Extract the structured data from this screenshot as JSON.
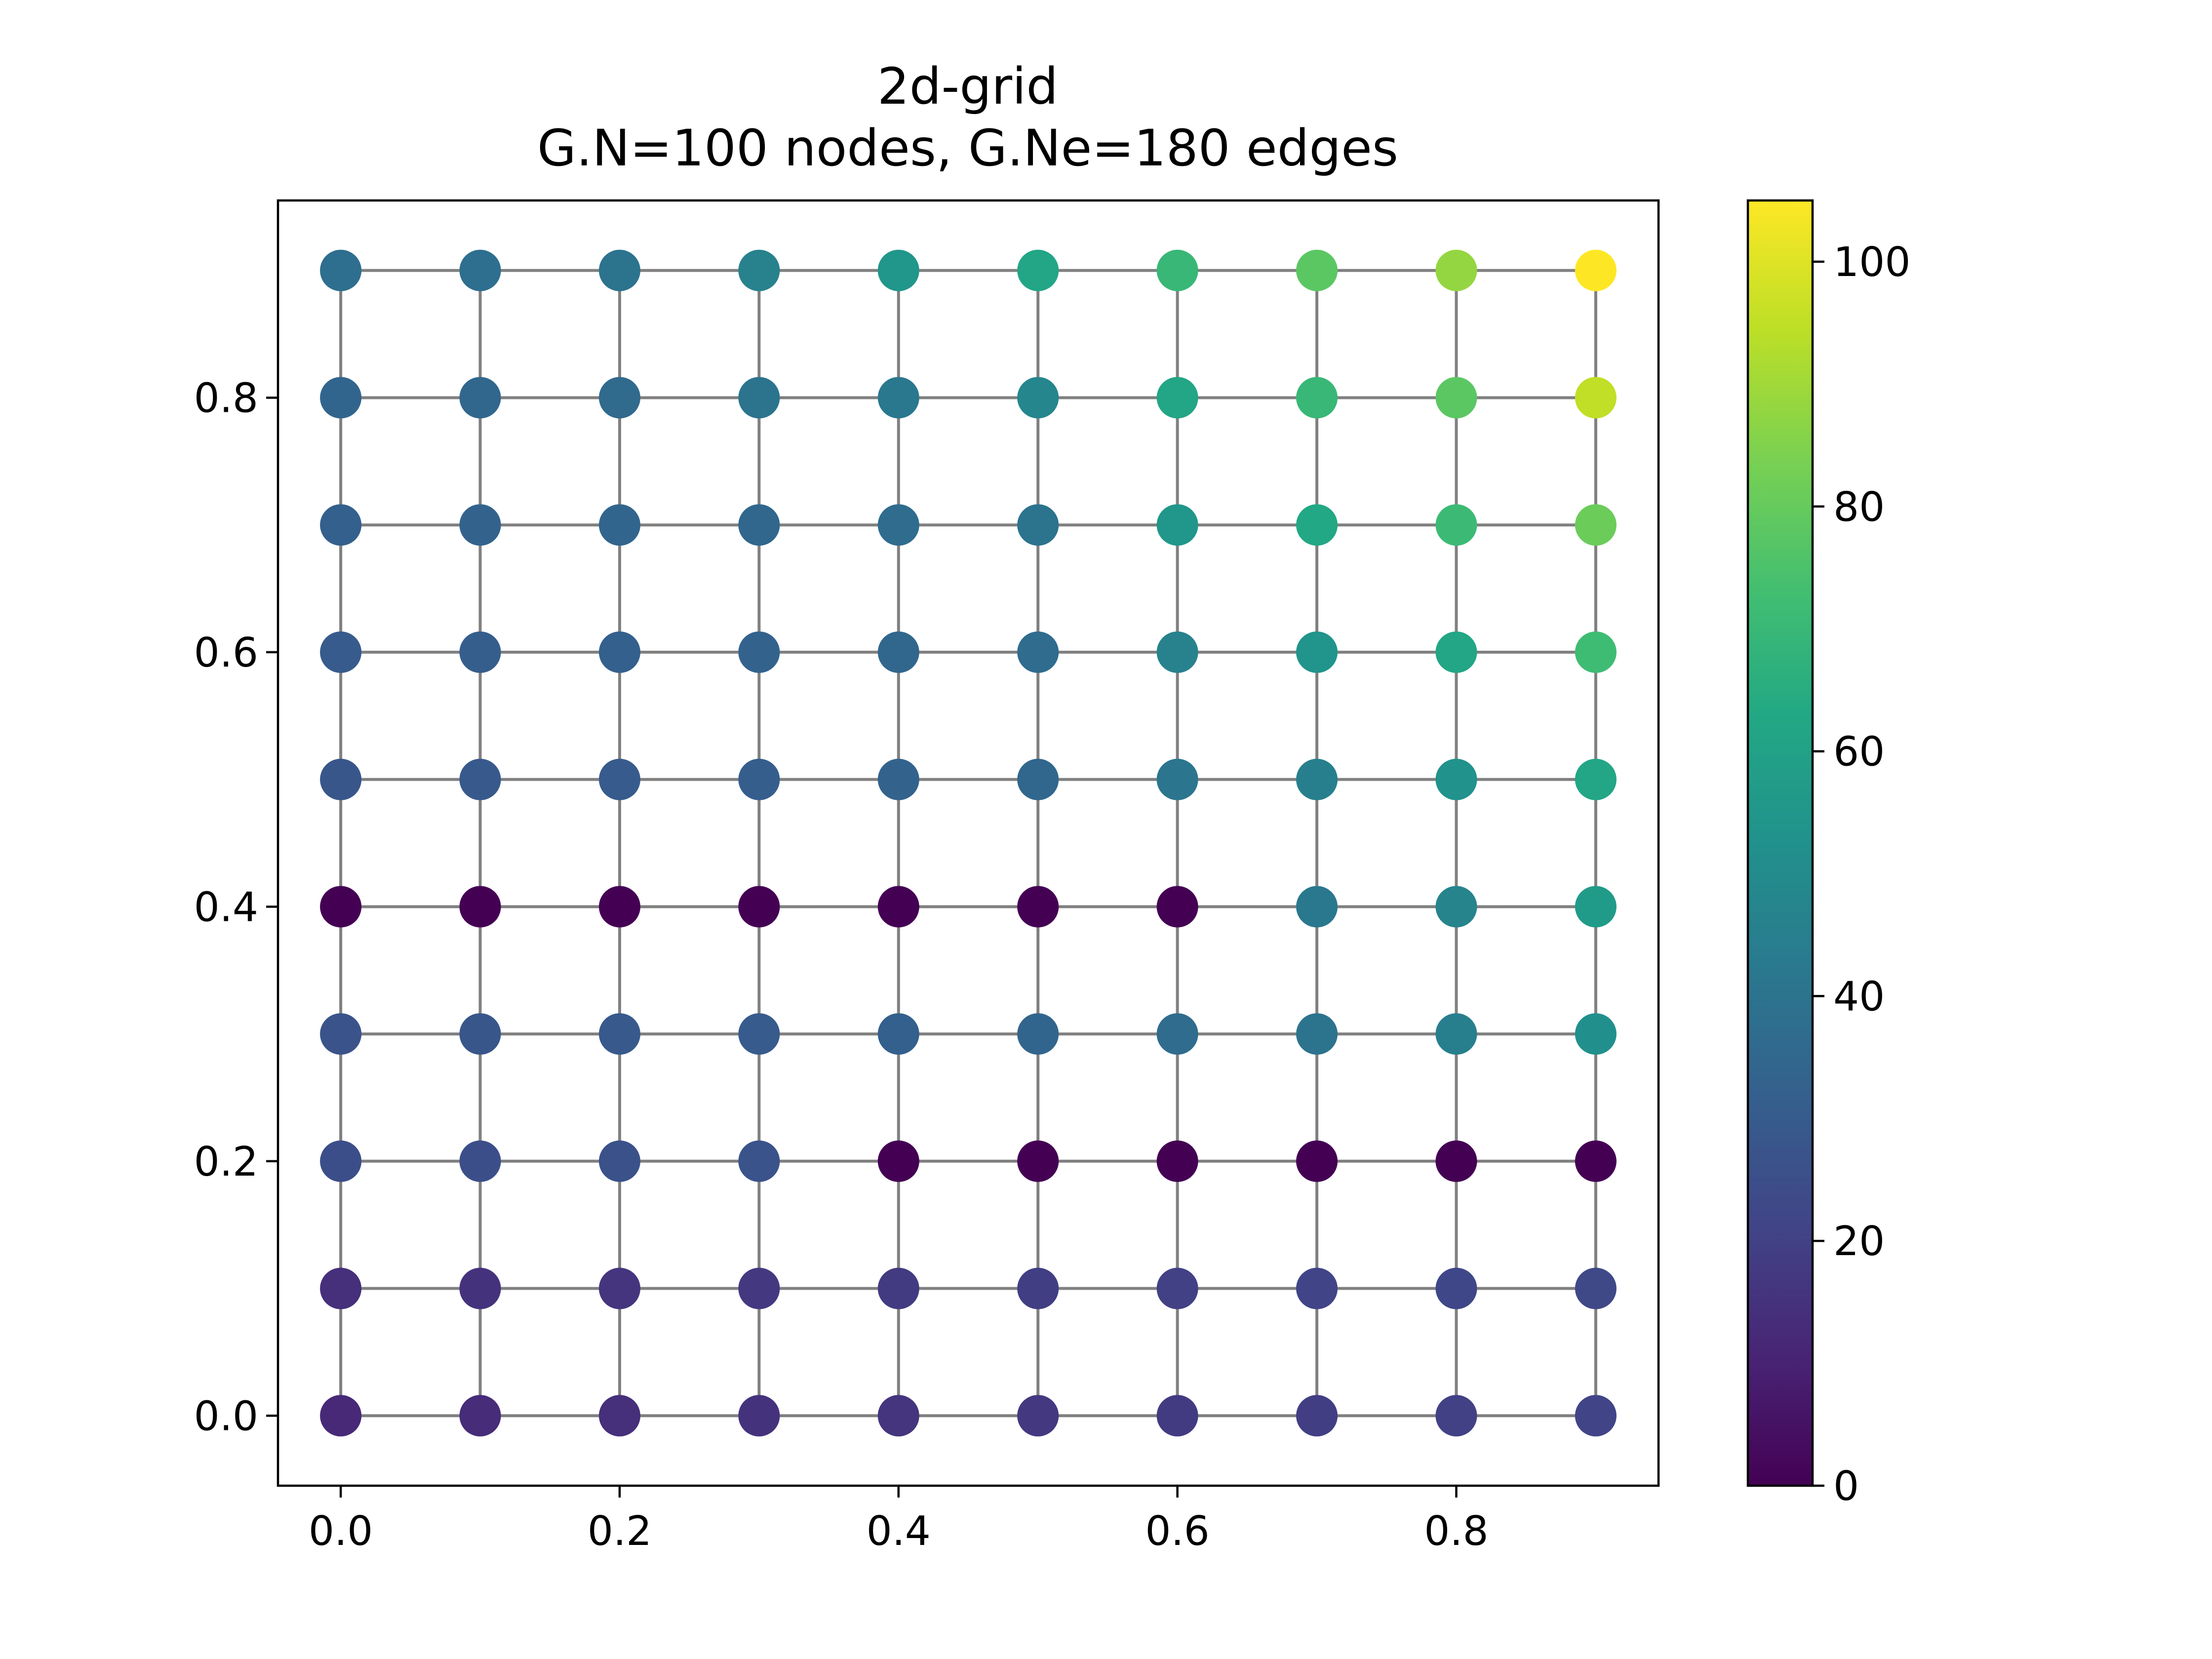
{
  "chart_data": {
    "type": "scatter",
    "title": "2d-grid",
    "subtitle": "G.N=100 nodes, G.Ne=180 edges",
    "xlabel": "",
    "ylabel": "",
    "xlim": [
      -0.045,
      0.945
    ],
    "ylim": [
      -0.055,
      0.955
    ],
    "xticks": [
      "0.0",
      "0.2",
      "0.4",
      "0.6",
      "0.8"
    ],
    "yticks": [
      "0.0",
      "0.2",
      "0.4",
      "0.6",
      "0.8"
    ],
    "grid": false,
    "graph": {
      "layout": "2d-grid",
      "nx": 10,
      "ny": 10,
      "spacing": 0.1,
      "nodes": 100,
      "edges": 180,
      "edge_color": "#808080"
    },
    "node_values": [
      [
        12,
        13,
        14,
        15,
        16,
        17,
        18,
        19,
        20,
        21
      ],
      [
        14,
        15,
        16,
        17,
        18,
        19,
        20,
        21,
        22,
        23
      ],
      [
        25,
        25,
        26,
        27,
        0,
        0,
        0,
        0,
        0,
        0
      ],
      [
        27,
        28,
        29,
        30,
        32,
        34,
        37,
        40,
        45,
        52
      ],
      [
        0,
        0,
        0,
        0,
        0,
        0,
        0,
        42,
        47,
        57
      ],
      [
        28,
        29,
        30,
        31,
        33,
        35,
        41,
        45,
        53,
        62
      ],
      [
        30,
        31,
        32,
        33,
        35,
        37,
        46,
        54,
        62,
        72
      ],
      [
        32,
        33,
        34,
        35,
        37,
        40,
        55,
        63,
        71,
        81
      ],
      [
        34,
        35,
        36,
        40,
        42,
        48,
        62,
        70,
        78,
        95
      ],
      [
        38,
        38,
        40,
        46,
        55,
        62,
        70,
        78,
        88,
        105
      ]
    ],
    "colorbar": {
      "colormap": "viridis",
      "range": [
        0,
        105
      ],
      "ticks": [
        "0",
        "20",
        "40",
        "60",
        "80",
        "100"
      ]
    }
  }
}
